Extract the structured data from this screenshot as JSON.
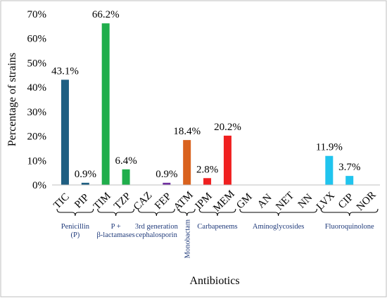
{
  "chart_data": {
    "type": "bar",
    "title": "",
    "xlabel": "Antibiotics",
    "ylabel": "Percentage of strains",
    "ylim": [
      0,
      70
    ],
    "yticks": [
      "0%",
      "10%",
      "20%",
      "30%",
      "40%",
      "50%",
      "60%",
      "70%"
    ],
    "categories": [
      "TIC",
      "PIP",
      "TIM",
      "TZP",
      "CAZ",
      "FEP",
      "ATM",
      "IPM",
      "MEM",
      "GM",
      "AN",
      "NET",
      "NN",
      "LVX",
      "CIP",
      "NOR"
    ],
    "values": [
      43.1,
      0.9,
      66.2,
      6.4,
      0,
      0.9,
      18.4,
      2.8,
      20.2,
      0,
      0,
      0,
      0,
      11.9,
      3.7,
      0
    ],
    "data_labels": [
      "43.1%",
      "0.9%",
      "66.2%",
      "6.4%",
      "",
      "0.9%",
      "18.4%",
      "2.8%",
      "20.2%",
      "",
      "",
      "",
      "",
      "11.9%",
      "3.7%",
      ""
    ],
    "colors": [
      "#1f5f82",
      "#1f5f82",
      "#1fae4b",
      "#1fae4b",
      "#7030a0",
      "#7030a0",
      "#d9621e",
      "#f02020",
      "#f02020",
      "#808080",
      "#808080",
      "#808080",
      "#808080",
      "#20c4ee",
      "#20c4ee",
      "#20c4ee"
    ],
    "groups": [
      {
        "label": "Penicillin (P)",
        "lines": [
          "Penicillin",
          "(P)"
        ],
        "start": 0,
        "end": 1
      },
      {
        "label": "P + β-lactamases",
        "lines": [
          "P +",
          "β-lactamases"
        ],
        "start": 2,
        "end": 3
      },
      {
        "label": "3rd generation cephalosporin",
        "lines": [
          "3rd generation",
          "cephalosporin"
        ],
        "start": 4,
        "end": 5
      },
      {
        "label": "Monobactam",
        "lines": [
          "Monobactam"
        ],
        "start": 6,
        "end": 6
      },
      {
        "label": "Carbapenems",
        "lines": [
          "Carbapenems"
        ],
        "start": 7,
        "end": 8
      },
      {
        "label": "Aminoglycosides",
        "lines": [
          "Aminoglycosides"
        ],
        "start": 9,
        "end": 12
      },
      {
        "label": "Fluoroquinolone",
        "lines": [
          "Fluoroquinolone"
        ],
        "start": 13,
        "end": 15
      }
    ],
    "grid": false,
    "legend": "none"
  }
}
